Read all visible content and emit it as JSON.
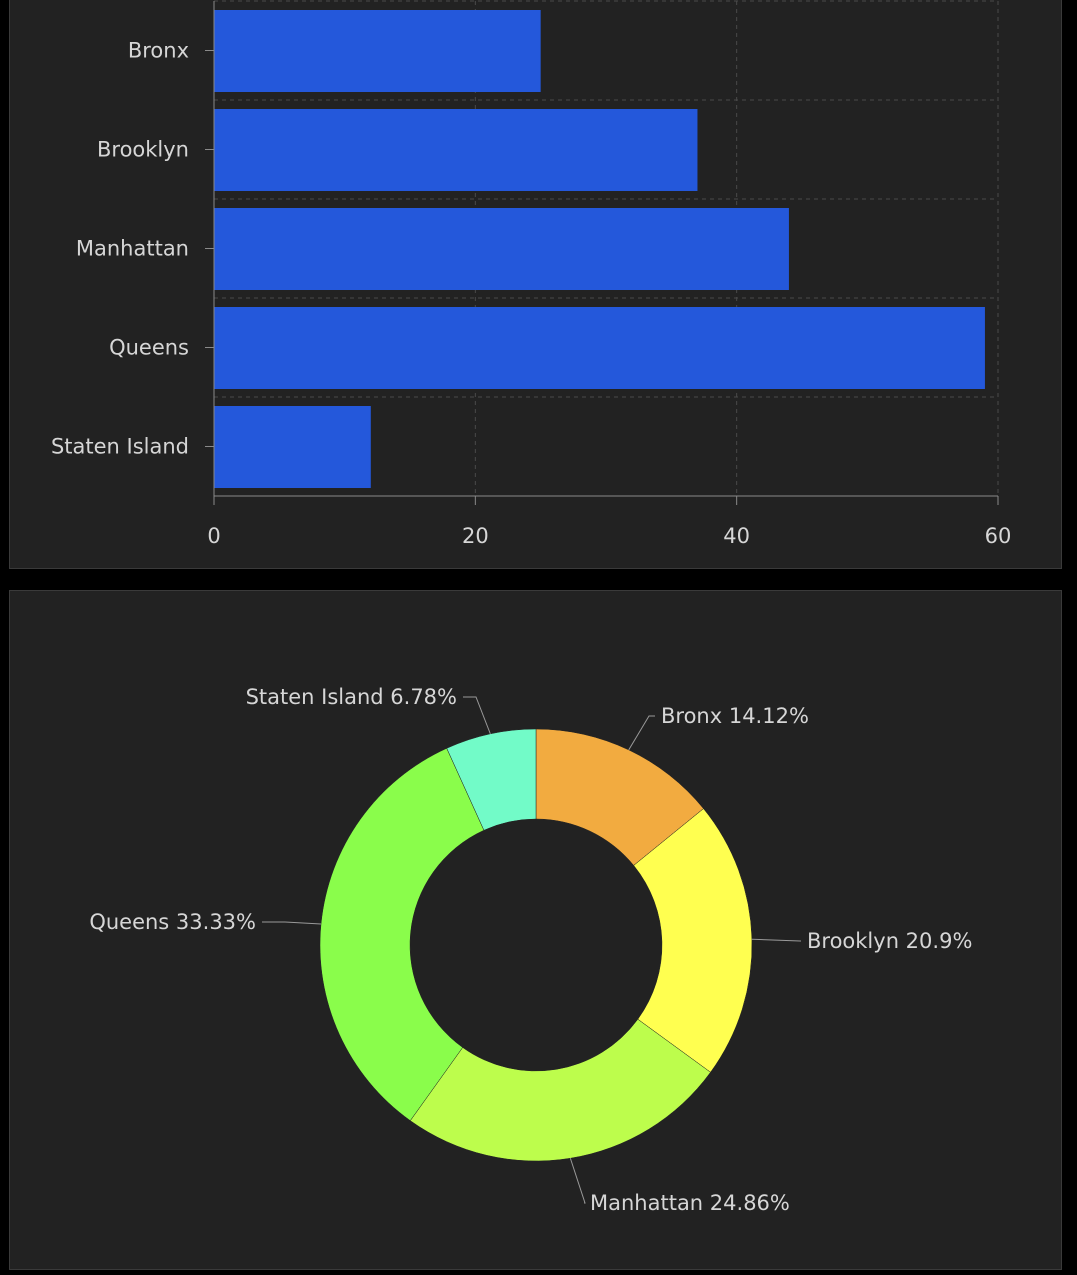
{
  "charts": {
    "bar": {
      "chart_data": {
        "type": "bar",
        "orientation": "horizontal",
        "categories": [
          "Bronx",
          "Brooklyn",
          "Manhattan",
          "Queens",
          "Staten Island"
        ],
        "values": [
          25,
          37,
          44,
          59,
          12
        ],
        "xlim": [
          0,
          60
        ],
        "xticks": [
          "0",
          "20",
          "40",
          "60"
        ],
        "grid": true,
        "bar_color": "#2458db"
      }
    },
    "pie": {
      "chart_data": {
        "type": "pie",
        "style": "donut",
        "labels": [
          "Bronx",
          "Brooklyn",
          "Manhattan",
          "Queens",
          "Staten Island"
        ],
        "values": [
          25,
          37,
          44,
          59,
          12
        ],
        "percent_labels": [
          "Bronx 14.12%",
          "Brooklyn 20.9%",
          "Manhattan 24.86%",
          "Queens 33.33%",
          "Staten Island 6.78%"
        ],
        "colors": [
          "#f2ab40",
          "#ffff50",
          "#bdfd4c",
          "#8afd4b",
          "#72fbc8"
        ]
      }
    }
  },
  "theme": {
    "panel_bg": "#222222",
    "text_color": "#d6d6d6",
    "axis_color": "#8a8a8a",
    "grid_color": "#4a4a4a"
  }
}
